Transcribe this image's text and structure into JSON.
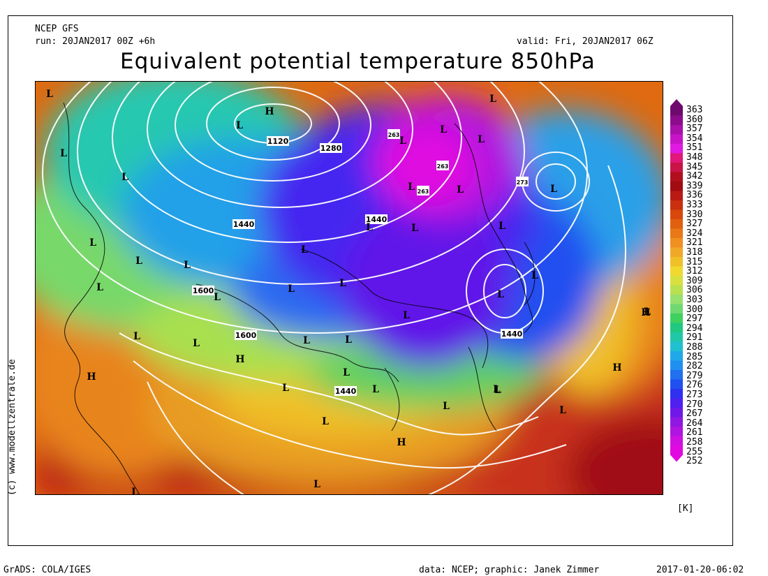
{
  "header": {
    "model": "NCEP GFS",
    "run": "run: 20JAN2017 00Z +6h",
    "valid": "valid: Fri, 20JAN2017 06Z",
    "title": "Equivalent potential temperature 850hPa"
  },
  "map": {
    "contour_labels": [
      "1120",
      "1280",
      "1440",
      "1440",
      "1600",
      "1600",
      "1440",
      "1440",
      "263",
      "263",
      "273",
      "263"
    ],
    "pressure_systems": [
      "L",
      "L",
      "L",
      "L",
      "L",
      "H",
      "L",
      "L",
      "L",
      "L",
      "L",
      "L",
      "L",
      "L",
      "L",
      "L",
      "L",
      "L",
      "L",
      "L",
      "L",
      "L",
      "L",
      "L",
      "L",
      "L",
      "L",
      "L",
      "L",
      "L",
      "L",
      "L",
      "L",
      "H",
      "L",
      "H",
      "H",
      "L",
      "L",
      "L",
      "L",
      "L",
      "L",
      "L",
      "H",
      "L",
      "L",
      "L",
      "L",
      "H"
    ],
    "colors": {
      "warm": "#e06a10",
      "hot": "#b80f18",
      "mid": "#e8d21c",
      "cool": "#3ad06a",
      "cold": "#2060f0",
      "very_cold": "#8a1ee0",
      "coldest": "#d80ad8"
    }
  },
  "colorbar": {
    "ticks": [
      "363",
      "360",
      "357",
      "354",
      "351",
      "348",
      "345",
      "342",
      "339",
      "336",
      "333",
      "330",
      "327",
      "324",
      "321",
      "318",
      "315",
      "312",
      "309",
      "306",
      "303",
      "300",
      "297",
      "294",
      "291",
      "288",
      "285",
      "282",
      "279",
      "276",
      "273",
      "270",
      "267",
      "264",
      "261",
      "258",
      "255",
      "252"
    ],
    "colors": [
      "#6e0a6e",
      "#8c0c8c",
      "#aa10aa",
      "#c814c8",
      "#e01ae0",
      "#e0187a",
      "#c81446",
      "#b00f1e",
      "#a00c12",
      "#b81a14",
      "#c8300e",
      "#d8480c",
      "#e06010",
      "#e87818",
      "#f09020",
      "#f0a828",
      "#f0c028",
      "#f0d830",
      "#d8e040",
      "#b8e050",
      "#98e070",
      "#70d870",
      "#40d060",
      "#20c880",
      "#20c8a8",
      "#20c0d0",
      "#20a8e8",
      "#2090f0",
      "#2070f0",
      "#2050f0",
      "#3030f0",
      "#5020f0",
      "#7018e8",
      "#9018e0",
      "#b014e0",
      "#d010e0",
      "#e00ae0"
    ],
    "unit": "[K]"
  },
  "footer": {
    "software": "GrADS: COLA/IGES",
    "data_credit": "data: NCEP; graphic: Janek Zimmer",
    "timestamp": "2017-01-20-06:02",
    "site": "(c)  www.modellzentrale.de"
  }
}
